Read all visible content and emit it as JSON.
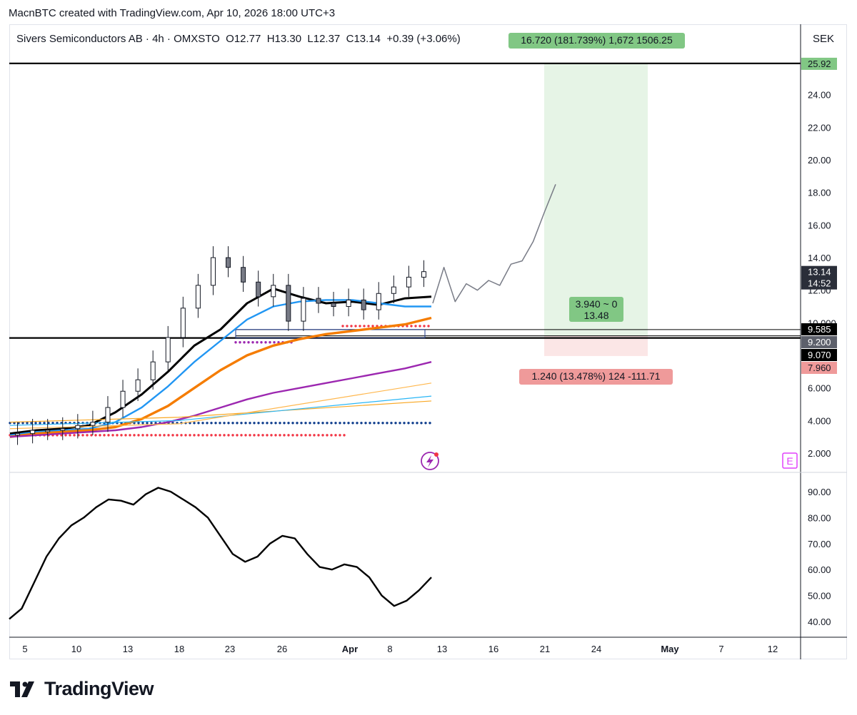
{
  "caption": "MacnBTC created with TradingView.com, Apr 10, 2026 18:00 UTC+3",
  "symbol_line": "Sivers Semiconductors AB · 4h · OMXSTO  O12.77  H13.30  L12.37  C13.14  +0.39 (+3.06%)",
  "currency": "SEK",
  "brand": "TradingView",
  "colors": {
    "profit": "#81c784",
    "loss": "#ef9a9a",
    "ema_fast": "#000000",
    "ema_blue": "#2196f3",
    "ema_orange": "#f57c00",
    "ema_purple": "#9c27b0",
    "dots_blue": "#0d3c8c",
    "dots_red": "#f23645"
  },
  "chart_data": [
    {
      "type": "line",
      "title": "",
      "price_axis": {
        "ticks": [
          "24.00",
          "22.00",
          "20.00",
          "18.00",
          "16.00",
          "14.00",
          "12.00",
          "10.000",
          "6.000",
          "4.000",
          "2.000"
        ]
      },
      "time_axis": {
        "ticks": [
          "5",
          "10",
          "13",
          "18",
          "23",
          "26",
          "Apr",
          "8",
          "13",
          "16",
          "21",
          "24",
          "May",
          "7",
          "12"
        ]
      },
      "price_labels": [
        {
          "text": "25.92",
          "style": "profit"
        },
        {
          "text": "13.14",
          "style": "last"
        },
        {
          "text": "14:52",
          "style": "last_sub"
        },
        {
          "text": "9.585",
          "style": "dark"
        },
        {
          "text": "9.200",
          "style": "grey"
        },
        {
          "text": "9.070",
          "style": "dark"
        },
        {
          "text": "7.960",
          "style": "loss"
        }
      ],
      "levels": [
        25.92,
        9.07,
        9.2,
        9.585
      ],
      "position": {
        "entry": 9.2,
        "target": 25.92,
        "stop": 7.96,
        "target_label": "16.720 (181.739%) 1,672 1506.25",
        "ratio_line1": "3.940 ~ 0",
        "ratio_line2": "13.48",
        "stop_label": "1.240 (13.478%) 124 -111.71"
      },
      "candles_approx": [
        3.2,
        3.4,
        3.4,
        3.5,
        3.7,
        3.9,
        4.8,
        5.8,
        6.5,
        7.6,
        9.1,
        10.9,
        12.3,
        14.0,
        13.4,
        12.5,
        11.6,
        12.3,
        10.1,
        11.5,
        11.2,
        11.0,
        11.4,
        10.8,
        11.8,
        12.2,
        12.8,
        13.14
      ],
      "projection": [
        11.2,
        13.4,
        11.3,
        12.4,
        12.0,
        12.6,
        12.3,
        13.6,
        13.8,
        15.0,
        16.8,
        18.5
      ],
      "series": [
        {
          "name": "",
          "color": "#000000",
          "values": [
            3.2,
            3.4,
            3.5,
            3.7,
            4.5,
            5.6,
            7.0,
            8.6,
            9.6,
            11.2,
            12.1,
            11.6,
            11.2,
            11.3,
            11.1,
            11.5,
            11.6
          ]
        },
        {
          "name": "",
          "color": "#2196f3",
          "values": [
            3.1,
            3.3,
            3.4,
            3.5,
            3.9,
            4.8,
            6.1,
            7.6,
            8.9,
            10.2,
            11.0,
            11.3,
            11.4,
            11.4,
            11.2,
            11.0,
            11.0
          ]
        },
        {
          "name": "",
          "color": "#f57c00",
          "values": [
            3.0,
            3.2,
            3.3,
            3.4,
            3.6,
            4.1,
            4.9,
            6.0,
            7.1,
            8.0,
            8.6,
            9.0,
            9.3,
            9.5,
            9.7,
            9.9,
            10.3
          ]
        },
        {
          "name": "",
          "color": "#9c27b0",
          "values": [
            3.0,
            3.1,
            3.2,
            3.3,
            3.4,
            3.6,
            3.9,
            4.3,
            4.8,
            5.3,
            5.7,
            6.0,
            6.3,
            6.6,
            6.9,
            7.2,
            7.6
          ]
        }
      ]
    },
    {
      "type": "line",
      "title": "",
      "axis": {
        "ticks": [
          "90.00",
          "80.00",
          "70.00",
          "60.00",
          "50.00",
          "40.00"
        ]
      },
      "values": [
        41,
        45,
        55,
        65,
        72,
        77,
        80,
        84,
        87,
        86.5,
        85,
        89,
        91.5,
        90,
        87,
        84,
        80,
        73,
        66,
        63,
        65,
        70,
        73,
        72,
        66,
        61,
        60,
        62,
        61,
        57,
        50,
        46,
        48,
        52,
        57
      ]
    }
  ]
}
